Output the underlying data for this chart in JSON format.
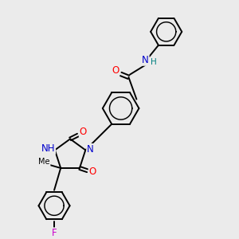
{
  "background_color": "#ebebeb",
  "line_color": "#000000",
  "bond_lw": 1.4,
  "atom_colors": {
    "O": "#ff0000",
    "N": "#0000cc",
    "F": "#cc00cc",
    "H": "#008080",
    "C": "#000000"
  },
  "font_size": 8.5,
  "figsize": [
    3.0,
    3.0
  ],
  "dpi": 100
}
